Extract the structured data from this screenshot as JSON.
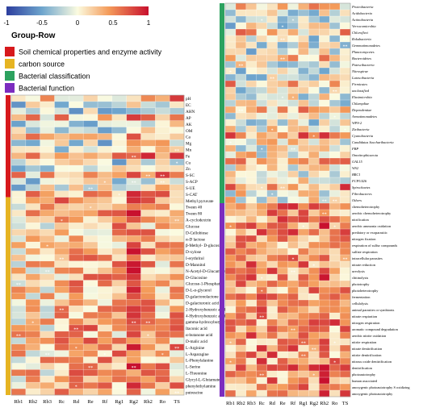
{
  "chart_data": {
    "type": "heatmap",
    "colorbar": {
      "ticks": [
        "-1",
        "-0.5",
        "0",
        "0.5",
        "1"
      ],
      "low_color": "#2c3e9e",
      "mid_color": "#fbfbe0",
      "high_color": "#c8102e"
    },
    "legend": {
      "title": "Group-Row",
      "entries": [
        {
          "label": "Soil chemical properties and enzyme activity",
          "color": "#d7191c"
        },
        {
          "label": "carbon source",
          "color": "#e6b422"
        },
        {
          "label": "Bacterial classification",
          "color": "#2ca25f"
        },
        {
          "label": "Bacterial function",
          "color": "#7b2cbf"
        }
      ]
    },
    "left_panel": {
      "columns": [
        "Rb1",
        "Rb2",
        "Rb3",
        "Rc",
        "Rd",
        "Re",
        "Rf",
        "Rg1",
        "Rg2",
        "Rh2",
        "Ro",
        "TS"
      ],
      "groups": [
        {
          "group": "Soil chemical properties and enzyme activity",
          "rows": [
            "pH",
            "EC",
            "AHN",
            "AP",
            "AK",
            "OM",
            "Ca",
            "Mg",
            "Mn",
            "Fe",
            "Cu",
            "Zn",
            "S-SC",
            "S-ACP",
            "S-UE",
            "S-CAT"
          ]
        },
        {
          "group": "carbon source",
          "rows": [
            "Methyl pyruvate",
            "Tween 40",
            "Tween 80",
            "A-cyclodextrin",
            "Glucose",
            "D-Cellobiose",
            "α-D lactose",
            "β-Methyl- D-glucoside",
            "D-xylose",
            "I-erythritol",
            "D-Mannitol",
            "N-Acetyl-D-Glucamine",
            "D-Glucosine",
            "Glucose-1-Phosphate",
            "D-L-α-glycerol",
            "D-galactonolactone",
            "D-galacturonic acid",
            "2-Hydroxybenzoic acid",
            "4-Hydroxybenzoic acid",
            "gamma-hydroxybutyric acid",
            "Itaconic acid",
            "α-butanone acid",
            "D-malic acid",
            "L-Arginine",
            "L-Asparagine",
            "L-Phenylalanine",
            "L-Serine",
            "L-Threonine",
            "Glycyl-L-Glutamate",
            "phenylethylamine",
            "putrescine"
          ]
        }
      ]
    },
    "right_panel": {
      "columns": [
        "Rb1",
        "Rb2",
        "Rb3",
        "Rc",
        "Rd",
        "Re",
        "Rf",
        "Rg1",
        "Rg2",
        "Rh2",
        "Ro",
        "TS"
      ],
      "groups": [
        {
          "group": "Bacterial classification",
          "rows": [
            "Proteobacteria",
            "Acidobacteria",
            "Actinobacteria",
            "Verrucomicrobia",
            "Chloroflexi",
            "Rokubacteria",
            "Gemmatimonadetes",
            "Planctomycetes",
            "Bacteroidetes",
            "Patescibacteria",
            "Nitrospirae",
            "Latescibacteria",
            "Firmicutes",
            "unclassified",
            "Elusimicrobia",
            "Chlamydiae",
            "Dependentiae",
            "Armatimonadetes",
            "WPS-2",
            "Zixibacteria",
            "Cyanobacteria",
            "Candidatus Saccharibacteria",
            "FBP",
            "Omnitrophicaeota",
            "GAL15",
            "WS2",
            "BRC1",
            "FCPU426",
            "Spirochaetes",
            "Fibrobacteres",
            "Others"
          ]
        },
        {
          "group": "Bacterial function",
          "rows": [
            "chemoheterotrophy",
            "aerobic chemoheterotrophy",
            "nitrification",
            "aerobic ammonia oxidation",
            "predatory or exoparasitic",
            "nitrogen fixation",
            "respiration of sulfur compounds",
            "sulfate respiration",
            "intracellular parasites",
            "nitrate reduction",
            "ureolysis",
            "chitinolysis",
            "phototrophy",
            "photoheterotrophy",
            "fermentation",
            "cellulolysis",
            "animal parasites or symbionts",
            "nitrate respiration",
            "nitrogen respiration",
            "aromatic compound degradation",
            "aerobic nitrite oxidation",
            "nitrite respiration",
            "nitrate denitrification",
            "nitrite denitrification",
            "nitrous oxide denitrification",
            "denitrification",
            "photoautotrophy",
            "human associated",
            "anoxygenic photoautotrophy S oxidizing",
            "anoxygenic photoautotrophy"
          ]
        }
      ]
    }
  }
}
